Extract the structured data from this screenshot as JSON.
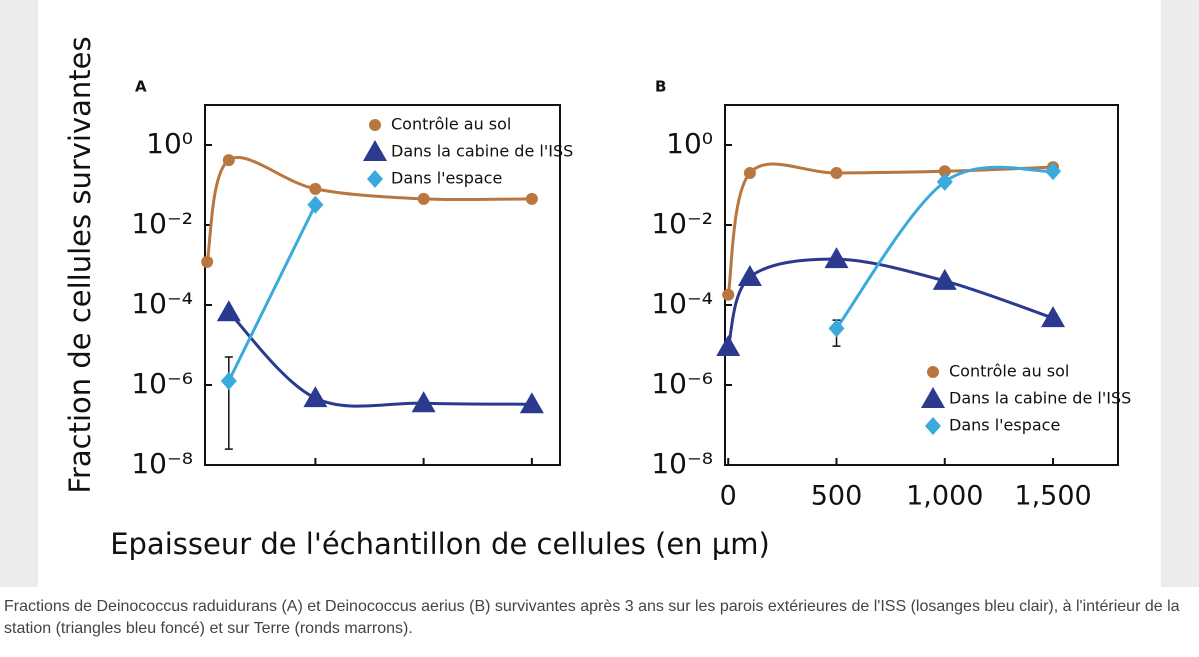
{
  "chart_data": [
    {
      "type": "line",
      "title": "A",
      "yscale": "log",
      "ylim": [
        1e-08,
        10
      ],
      "yticks": [
        {
          "value": 1,
          "label": "10⁰"
        },
        {
          "value": 0.01,
          "label": "10⁻²"
        },
        {
          "value": 0.0001,
          "label": "10⁻⁴"
        },
        {
          "value": 1e-06,
          "label": "10⁻⁶"
        },
        {
          "value": 1e-08,
          "label": "10⁻⁸"
        }
      ],
      "xlim": [
        -10,
        1630
      ],
      "xticks": [
        500,
        1000,
        1500
      ],
      "xtick_labels": false,
      "legend": "upper right",
      "series": [
        {
          "name": "Contrôle au sol",
          "color": "#b9773f",
          "marker": "circle",
          "x": [
            0,
            100,
            500,
            1000,
            1500
          ],
          "values": [
            0.0012,
            0.42,
            0.08,
            0.045,
            0.045
          ]
        },
        {
          "name": "Dans la cabine de l'ISS",
          "color": "#2b3a8f",
          "marker": "triangle",
          "x": [
            100,
            500,
            1000,
            1500
          ],
          "values": [
            6.6e-05,
            4.7e-07,
            3.5e-07,
            3.3e-07
          ]
        },
        {
          "name": "Dans l'espace",
          "color": "#3aa9dc",
          "marker": "diamond",
          "x": [
            100,
            500
          ],
          "values": [
            1.26e-06,
            0.032
          ],
          "y_error": [
            [
              2.5e-08,
              5e-06
            ],
            null
          ]
        }
      ]
    },
    {
      "type": "line",
      "title": "B",
      "yscale": "log",
      "ylim": [
        1e-08,
        10
      ],
      "yticks": [
        {
          "value": 1,
          "label": "10⁰"
        },
        {
          "value": 0.01,
          "label": "10⁻²"
        },
        {
          "value": 0.0001,
          "label": "10⁻⁴"
        },
        {
          "value": 1e-06,
          "label": "10⁻⁶"
        },
        {
          "value": 1e-08,
          "label": "10⁻⁸"
        }
      ],
      "xlim": [
        -15,
        1800
      ],
      "xticks": [
        0,
        500,
        {
          "value": 1000,
          "label": "1,000"
        },
        {
          "value": 1500,
          "label": "1,500"
        }
      ],
      "xtick_labels": true,
      "legend": "lower right",
      "series": [
        {
          "name": "Contrôle au sol",
          "color": "#b9773f",
          "marker": "circle",
          "x": [
            0,
            100,
            500,
            1000,
            1500
          ],
          "values": [
            0.00018,
            0.2,
            0.2,
            0.22,
            0.28
          ]
        },
        {
          "name": "Dans la cabine de l'ISS",
          "color": "#2b3a8f",
          "marker": "triangle",
          "x": [
            0,
            100,
            500,
            1000,
            1500
          ],
          "values": [
            8.9e-06,
            0.0005,
            0.0014,
            0.0004,
            4.7e-05
          ]
        },
        {
          "name": "Dans l'espace",
          "color": "#3aa9dc",
          "marker": "diamond",
          "x": [
            500,
            1000,
            1500
          ],
          "values": [
            2.6e-05,
            0.12,
            0.22
          ],
          "y_error": [
            [
              9.4e-06,
              4.2e-05
            ],
            null,
            null
          ]
        }
      ]
    }
  ],
  "figure": {
    "ylabel": "Fraction de cellules survivantes",
    "xlabel": "Epaisseur de l'échantillon de cellules (en µm)"
  },
  "caption": "Fractions de Deinococcus raduidurans (A) et Deinococcus aerius (B) survivantes après 3 ans sur les parois extérieures de l'ISS (losanges bleu clair), à l'intérieur de la station (triangles bleu foncé) et sur Terre (ronds marrons)."
}
